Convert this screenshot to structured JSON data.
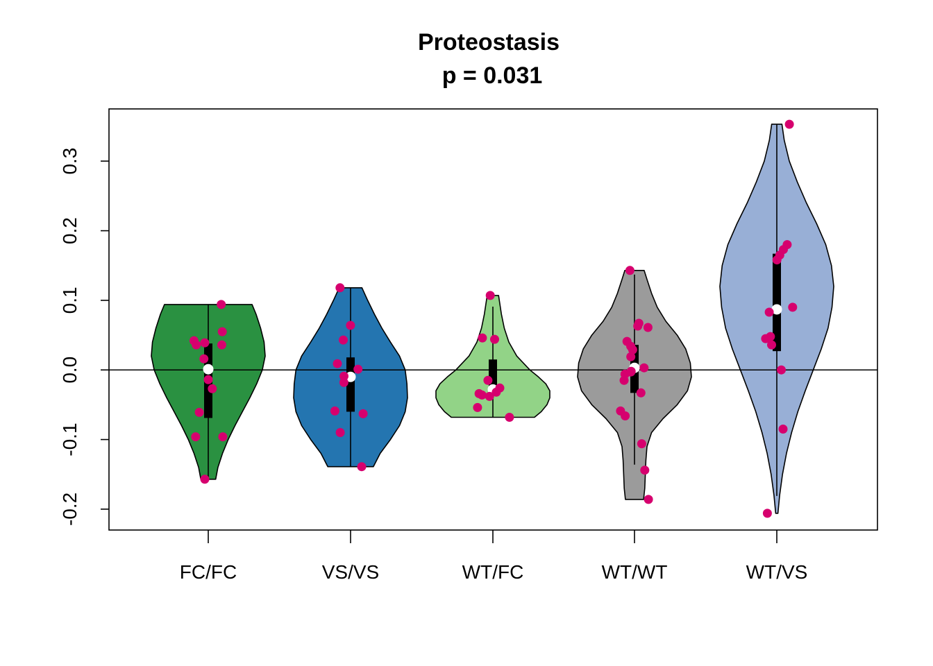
{
  "chart_data": {
    "type": "violin",
    "title": "Proteostasis",
    "subtitle": "p = 0.031",
    "xlabel": "",
    "ylabel": "",
    "ylim": [
      -0.23,
      0.375
    ],
    "yticks": [
      -0.2,
      -0.1,
      0.0,
      0.1,
      0.2,
      0.3
    ],
    "ytick_labels": [
      "-0.2",
      "-0.1",
      "0.0",
      "0.1",
      "0.2",
      "0.3"
    ],
    "reference_line": 0.0,
    "point_color": "#d6006e",
    "groups": [
      {
        "name": "FC/FC",
        "color": "#2a9141",
        "min": -0.157,
        "max": 0.094,
        "q1": -0.069,
        "median": 0.001,
        "q3": 0.038,
        "whisker_low": -0.157,
        "whisker_high": 0.094,
        "density": [
          [
            -0.157,
            0.13
          ],
          [
            -0.14,
            0.17
          ],
          [
            -0.12,
            0.25
          ],
          [
            -0.1,
            0.35
          ],
          [
            -0.08,
            0.47
          ],
          [
            -0.06,
            0.6
          ],
          [
            -0.04,
            0.73
          ],
          [
            -0.02,
            0.85
          ],
          [
            0.0,
            0.95
          ],
          [
            0.02,
            1.0
          ],
          [
            0.04,
            0.98
          ],
          [
            0.06,
            0.92
          ],
          [
            0.08,
            0.84
          ],
          [
            0.094,
            0.77
          ]
        ],
        "points": [
          0.094,
          0.055,
          0.042,
          0.039,
          0.036,
          0.036,
          0.016,
          -0.014,
          -0.027,
          -0.061,
          -0.096,
          -0.096,
          -0.157
        ]
      },
      {
        "name": "VS/VS",
        "color": "#2475b0",
        "min": -0.139,
        "max": 0.118,
        "q1": -0.06,
        "median": -0.01,
        "q3": 0.018,
        "whisker_low": -0.139,
        "whisker_high": 0.118,
        "density": [
          [
            -0.139,
            0.4
          ],
          [
            -0.12,
            0.52
          ],
          [
            -0.1,
            0.7
          ],
          [
            -0.08,
            0.86
          ],
          [
            -0.06,
            0.96
          ],
          [
            -0.04,
            1.0
          ],
          [
            -0.02,
            0.99
          ],
          [
            0.0,
            0.96
          ],
          [
            0.02,
            0.86
          ],
          [
            0.04,
            0.7
          ],
          [
            0.06,
            0.55
          ],
          [
            0.08,
            0.42
          ],
          [
            0.1,
            0.3
          ],
          [
            0.118,
            0.2
          ]
        ],
        "points": [
          0.118,
          0.064,
          0.043,
          0.009,
          0.001,
          -0.009,
          -0.018,
          -0.059,
          -0.063,
          -0.09,
          -0.139
        ]
      },
      {
        "name": "WT/FC",
        "color": "#92d387",
        "min": -0.068,
        "max": 0.107,
        "q1": -0.03,
        "median": -0.028,
        "q3": 0.015,
        "whisker_low": -0.068,
        "whisker_high": 0.091,
        "density": [
          [
            -0.068,
            0.73
          ],
          [
            -0.06,
            0.85
          ],
          [
            -0.05,
            0.95
          ],
          [
            -0.04,
            1.0
          ],
          [
            -0.03,
            1.0
          ],
          [
            -0.02,
            0.93
          ],
          [
            -0.01,
            0.8
          ],
          [
            0.0,
            0.65
          ],
          [
            0.02,
            0.42
          ],
          [
            0.04,
            0.28
          ],
          [
            0.06,
            0.2
          ],
          [
            0.08,
            0.15
          ],
          [
            0.107,
            0.1
          ]
        ],
        "points": [
          0.107,
          0.046,
          0.044,
          -0.015,
          -0.026,
          -0.032,
          -0.034,
          -0.036,
          -0.038,
          -0.054,
          -0.068
        ]
      },
      {
        "name": "WT/WT",
        "color": "#9b9b9b",
        "min": -0.186,
        "max": 0.143,
        "q1": -0.033,
        "median": 0.003,
        "q3": 0.036,
        "whisker_low": -0.136,
        "whisker_high": 0.137,
        "density": [
          [
            -0.186,
            0.16
          ],
          [
            -0.17,
            0.18
          ],
          [
            -0.15,
            0.19
          ],
          [
            -0.13,
            0.2
          ],
          [
            -0.11,
            0.22
          ],
          [
            -0.09,
            0.3
          ],
          [
            -0.07,
            0.5
          ],
          [
            -0.05,
            0.75
          ],
          [
            -0.03,
            0.93
          ],
          [
            -0.01,
            1.0
          ],
          [
            0.01,
            0.98
          ],
          [
            0.03,
            0.9
          ],
          [
            0.05,
            0.75
          ],
          [
            0.07,
            0.55
          ],
          [
            0.09,
            0.4
          ],
          [
            0.11,
            0.3
          ],
          [
            0.13,
            0.22
          ],
          [
            0.143,
            0.17
          ]
        ],
        "points": [
          0.143,
          0.067,
          0.063,
          0.061,
          0.041,
          0.034,
          0.029,
          0.019,
          0.003,
          -0.002,
          -0.003,
          -0.006,
          -0.015,
          -0.033,
          -0.059,
          -0.066,
          -0.106,
          -0.144,
          -0.186
        ]
      },
      {
        "name": "WT/VS",
        "color": "#98afd6",
        "min": -0.206,
        "max": 0.353,
        "q1": 0.027,
        "median": 0.087,
        "q3": 0.167,
        "whisker_low": -0.181,
        "whisker_high": 0.353,
        "density": [
          [
            -0.206,
            0.02
          ],
          [
            -0.18,
            0.05
          ],
          [
            -0.15,
            0.1
          ],
          [
            -0.12,
            0.17
          ],
          [
            -0.09,
            0.26
          ],
          [
            -0.06,
            0.37
          ],
          [
            -0.03,
            0.5
          ],
          [
            0.0,
            0.64
          ],
          [
            0.03,
            0.78
          ],
          [
            0.06,
            0.9
          ],
          [
            0.09,
            0.97
          ],
          [
            0.12,
            1.0
          ],
          [
            0.15,
            0.96
          ],
          [
            0.18,
            0.86
          ],
          [
            0.21,
            0.7
          ],
          [
            0.24,
            0.52
          ],
          [
            0.27,
            0.36
          ],
          [
            0.3,
            0.22
          ],
          [
            0.33,
            0.13
          ],
          [
            0.353,
            0.09
          ]
        ],
        "points": [
          0.353,
          0.18,
          0.173,
          0.165,
          0.158,
          0.09,
          0.083,
          0.048,
          0.045,
          0.036,
          0.0,
          -0.085,
          -0.206
        ]
      }
    ]
  }
}
